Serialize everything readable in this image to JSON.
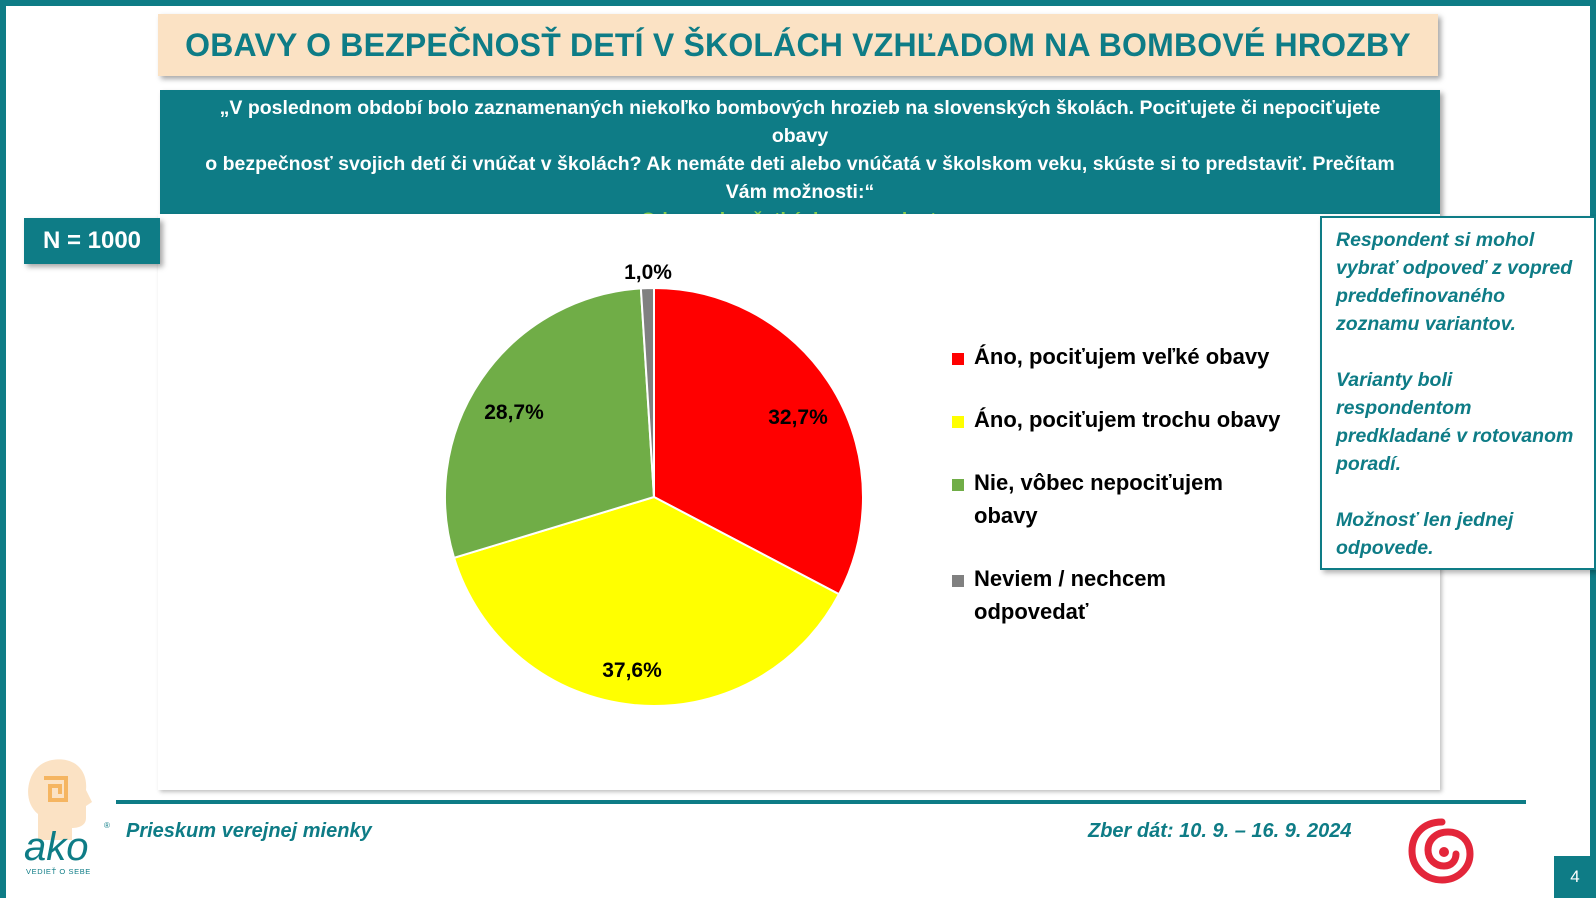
{
  "title": "OBAVY O BEZPEČNOSŤ DETÍ V ŠKOLÁCH VZHĽADOM NA BOMBOVÉ HROZBY",
  "question": {
    "line1": "„V poslednom období bolo zaznamenaných niekoľko bombových hrozieb na slovenských školách. Pociťujete či nepociťujete obavy",
    "line2": "o bezpečnosť svojich detí či vnúčat v školách? Ak nemáte deti alebo vnúčatá v školskom veku, skúste si to predstaviť. Prečítam",
    "line3": "Vám možnosti:“",
    "subtitle": "Odpovede všetkých respondentov"
  },
  "sample": "N = 1000",
  "note": {
    "p1": "Respondent si mohol vybrať odpoveď z vopred preddefinovaného zoznamu variantov.",
    "p2": "Varianty boli respondentom predkladané v rotovanom poradí.",
    "p3": "Možnosť len jednej odpovede."
  },
  "footer": {
    "left": "Prieskum verejnej mienky",
    "right": "Zber dát: 10. 9. – 16. 9. 2024"
  },
  "page_number": "4",
  "logo": {
    "text": "ako",
    "tagline": "VEDIEŤ O SEBE"
  },
  "chart_data": {
    "type": "pie",
    "start": "top, clockwise",
    "slices": [
      {
        "label": "Áno, pociťujem veľké obavy",
        "value": 32.7,
        "display": "32,7%",
        "color": "#ff0000"
      },
      {
        "label": "Áno, pociťujem trochu obavy",
        "value": 37.6,
        "display": "37,6%",
        "color": "#ffff00"
      },
      {
        "label": "Nie, vôbec nepociťujem obavy",
        "value": 28.7,
        "display": "28,7%",
        "color": "#70ad47"
      },
      {
        "label": "Neviem / nechcem odpovedať",
        "value": 1.0,
        "display": "1,0%",
        "color": "#808080"
      }
    ],
    "legend_position": "right"
  }
}
